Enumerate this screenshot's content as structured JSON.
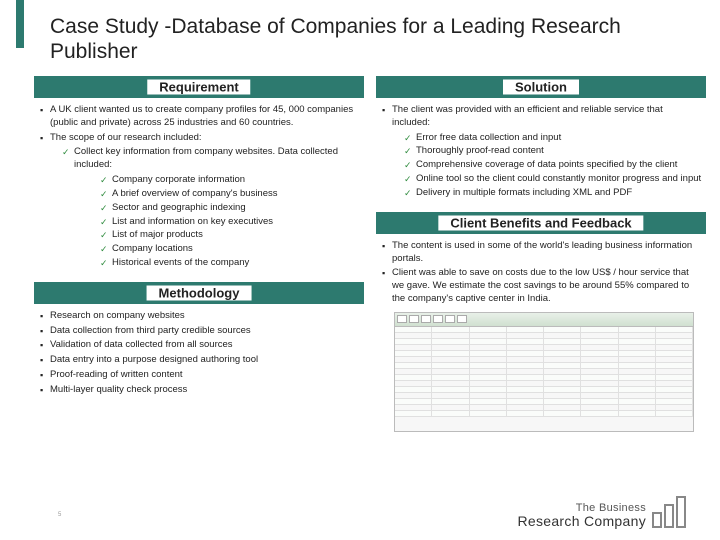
{
  "title": "Case Study -Database of Companies for a Leading Research Publisher",
  "headers": {
    "requirement": "Requirement",
    "methodology": "Methodology",
    "solution": "Solution",
    "benefits": "Client Benefits  and Feedback"
  },
  "requirement": {
    "b1": "A UK client wanted us to create company profiles for 45, 000 companies (public and private) across 25 industries and 60 countries.",
    "b2": "The scope of our research included:",
    "sub_intro": "Collect key information from company websites. Data collected included:",
    "c1": "Company corporate information",
    "c2": "A brief overview of company's business",
    "c3": "Sector and geographic indexing",
    "c4": "List and information on key executives",
    "c5": "List of major products",
    "c6": "Company locations",
    "c7": "Historical events of the company"
  },
  "methodology": {
    "m1": "Research on company websites",
    "m2": "Data collection from third party credible sources",
    "m3": "Validation of data collected from all sources",
    "m4": "Data entry into a purpose designed authoring tool",
    "m5": "Proof-reading of written content",
    "m6": "Multi-layer quality check process"
  },
  "solution": {
    "s_intro": "The client was  provided with an efficient and reliable service that included:",
    "s1": "Error free data collection and input",
    "s2": "Thoroughly proof-read content",
    "s3": "Comprehensive coverage of data points specified by the client",
    "s4": "Online tool so the client could constantly monitor progress and input",
    "s5": "Delivery in multiple formats including XML and PDF"
  },
  "benefits": {
    "bf1": "The content is used in some of the world's leading business information portals.",
    "bf2": "Client was able to save on costs due to the low US$ / hour service that we gave. We estimate the cost savings to be around 55% compared to the company's captive center in India."
  },
  "logo": {
    "line1": "The Business",
    "line2": "Research Company"
  },
  "page_num": "5",
  "colors": {
    "accent": "#2d7a6f",
    "check": "#2e8b3d"
  }
}
